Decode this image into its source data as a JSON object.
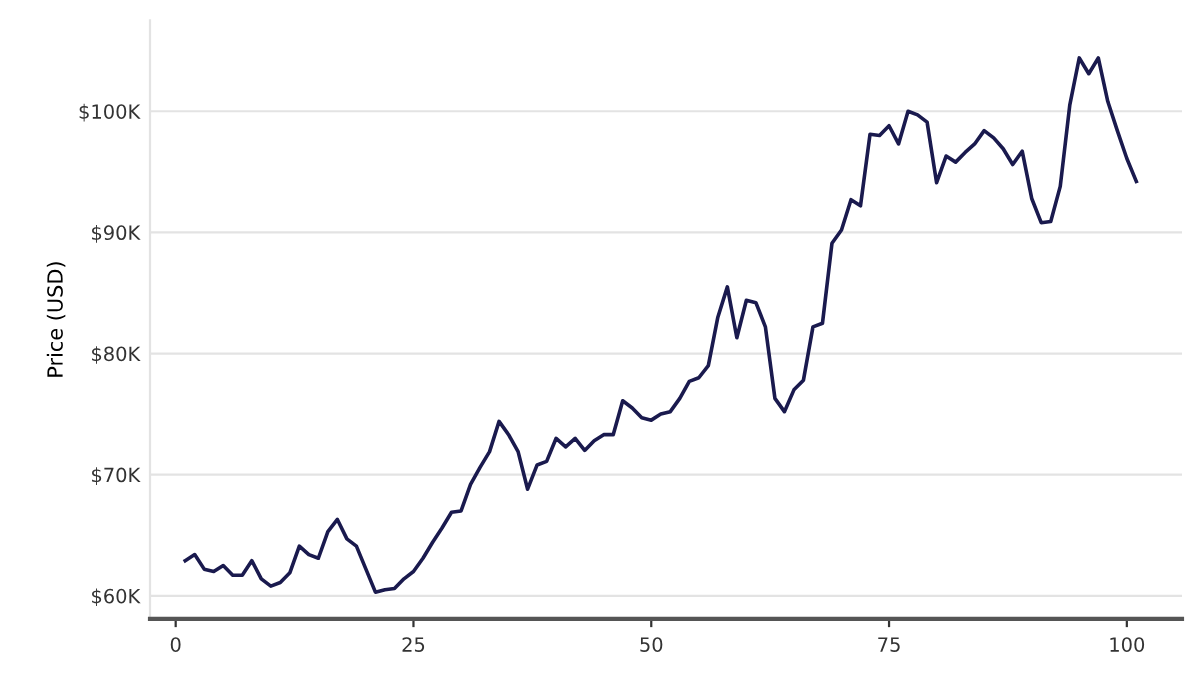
{
  "chart_data": {
    "type": "line",
    "ylabel": "Price (USD)",
    "x": [
      1,
      2,
      3,
      4,
      5,
      6,
      7,
      8,
      9,
      10,
      11,
      12,
      13,
      14,
      15,
      16,
      17,
      18,
      19,
      20,
      21,
      22,
      23,
      24,
      25,
      26,
      27,
      28,
      29,
      30,
      31,
      32,
      33,
      34,
      35,
      36,
      37,
      38,
      39,
      40,
      41,
      42,
      43,
      44,
      45,
      46,
      47,
      48,
      49,
      50,
      51,
      52,
      53,
      54,
      55,
      56,
      57,
      58,
      59,
      60,
      61,
      62,
      63,
      64,
      65,
      66,
      67,
      68,
      69,
      70,
      71,
      72,
      73,
      74,
      75,
      76,
      77,
      78,
      79,
      80,
      81,
      82,
      83,
      84,
      85,
      86,
      87,
      88,
      89,
      90,
      91,
      92,
      93,
      94,
      95,
      96,
      97,
      98,
      99,
      100,
      101
    ],
    "series": [
      {
        "color": "#1a1a4e",
        "values": [
          62900,
          63400,
          62200,
          62000,
          62500,
          61700,
          61700,
          62900,
          61400,
          60800,
          61100,
          61900,
          64100,
          63400,
          63100,
          65300,
          66300,
          64700,
          64100,
          62200,
          60300,
          60500,
          60600,
          61400,
          62000,
          63100,
          64400,
          65600,
          66900,
          67000,
          69200,
          70600,
          71900,
          74400,
          73300,
          71900,
          68800,
          70800,
          71100,
          73000,
          72300,
          73000,
          72000,
          72800,
          73300,
          73300,
          76100,
          75500,
          74700,
          74500,
          75000,
          75200,
          76300,
          77700,
          78000,
          79000,
          83000,
          85500,
          81300,
          84400,
          84200,
          82200,
          76300,
          75200,
          77000,
          77800,
          82200,
          82500,
          89100,
          90200,
          92700,
          92200,
          98100,
          98000,
          98800,
          97300,
          100000,
          99700,
          99100,
          94100,
          96300,
          95800,
          96600,
          97300,
          98400,
          97800,
          96900,
          95600,
          96700,
          92800,
          90800,
          90900,
          93800,
          100500,
          104400,
          103100,
          104400,
          100800,
          98400,
          96100,
          94200
        ]
      }
    ],
    "xlim": [
      -2.7,
      105.8
    ],
    "ylim": [
      58100,
      107500
    ],
    "xticks": [
      0,
      25,
      50,
      75,
      100
    ],
    "yticks": [
      {
        "value": 60000,
        "label": "$60K"
      },
      {
        "value": 70000,
        "label": "$70K"
      },
      {
        "value": 80000,
        "label": "$80K"
      },
      {
        "value": 90000,
        "label": "$90K"
      },
      {
        "value": 100000,
        "label": "$100K"
      }
    ],
    "grid": "y",
    "line_style": "solid",
    "marker": "none"
  }
}
